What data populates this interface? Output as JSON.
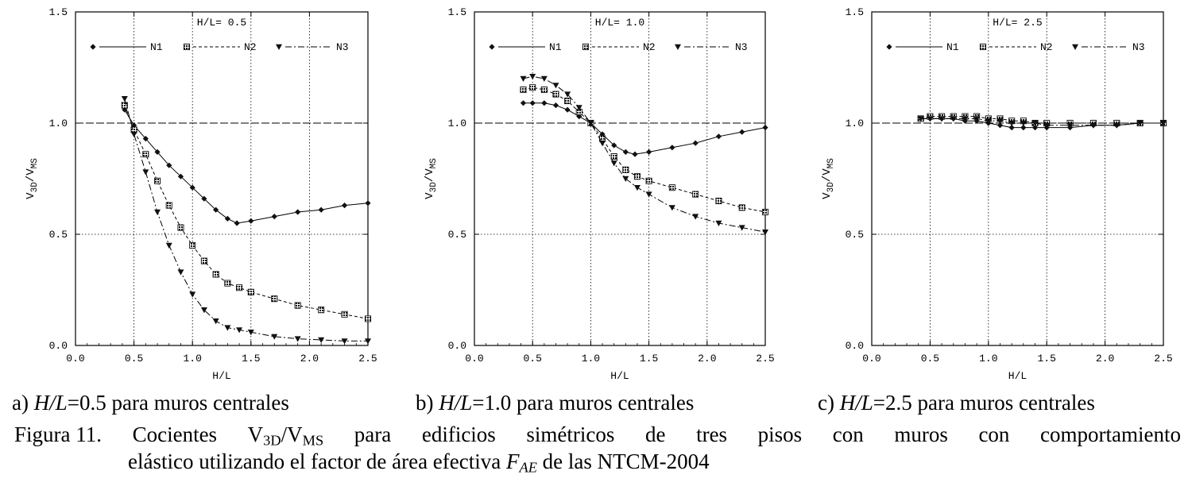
{
  "chart_data": [
    {
      "type": "line",
      "panel": "a",
      "title": "H/L= 0.5",
      "xlabel": "H/L",
      "ylabel": "V3D/VMS",
      "xlim": [
        0.0,
        2.5
      ],
      "ylim": [
        0.0,
        1.5
      ],
      "xticks": [
        "0.0",
        "0.5",
        "1.0",
        "1.5",
        "2.0",
        "2.5"
      ],
      "yticks": [
        "0.0",
        "0.5",
        "1.0",
        "1.5"
      ],
      "grid": true,
      "reference_line": 1.0,
      "legend_position": "top",
      "series": [
        {
          "name": "N1",
          "marker": "diamond",
          "line": "solid",
          "x": [
            0.42,
            0.5,
            0.6,
            0.7,
            0.8,
            0.9,
            1.0,
            1.1,
            1.2,
            1.3,
            1.38,
            1.5,
            1.7,
            1.9,
            2.1,
            2.3,
            2.5
          ],
          "y": [
            1.06,
            0.99,
            0.93,
            0.87,
            0.81,
            0.76,
            0.71,
            0.66,
            0.61,
            0.57,
            0.55,
            0.56,
            0.58,
            0.6,
            0.61,
            0.63,
            0.64
          ]
        },
        {
          "name": "N2",
          "marker": "square",
          "line": "dashed",
          "x": [
            0.42,
            0.5,
            0.6,
            0.7,
            0.8,
            0.9,
            1.0,
            1.1,
            1.2,
            1.3,
            1.4,
            1.5,
            1.7,
            1.9,
            2.1,
            2.3,
            2.5
          ],
          "y": [
            1.08,
            0.97,
            0.86,
            0.74,
            0.63,
            0.53,
            0.45,
            0.38,
            0.32,
            0.28,
            0.26,
            0.24,
            0.21,
            0.18,
            0.16,
            0.14,
            0.12
          ]
        },
        {
          "name": "N3",
          "marker": "triangle-down",
          "line": "dashdot",
          "x": [
            0.42,
            0.5,
            0.6,
            0.7,
            0.8,
            0.9,
            1.0,
            1.1,
            1.2,
            1.3,
            1.4,
            1.5,
            1.7,
            1.9,
            2.1,
            2.3,
            2.5
          ],
          "y": [
            1.11,
            0.95,
            0.78,
            0.6,
            0.45,
            0.33,
            0.23,
            0.16,
            0.11,
            0.08,
            0.07,
            0.06,
            0.04,
            0.03,
            0.025,
            0.02,
            0.02
          ]
        }
      ]
    },
    {
      "type": "line",
      "panel": "b",
      "title": "H/L= 1.0",
      "xlabel": "H/L",
      "ylabel": "V3D/VMS",
      "xlim": [
        0.0,
        2.5
      ],
      "ylim": [
        0.0,
        1.5
      ],
      "xticks": [
        "0.0",
        "0.5",
        "1.0",
        "1.5",
        "2.0",
        "2.5"
      ],
      "yticks": [
        "0.0",
        "0.5",
        "1.0",
        "1.5"
      ],
      "grid": true,
      "reference_line": 1.0,
      "legend_position": "top",
      "series": [
        {
          "name": "N1",
          "marker": "diamond",
          "line": "solid",
          "x": [
            0.42,
            0.5,
            0.6,
            0.7,
            0.8,
            0.9,
            1.0,
            1.1,
            1.2,
            1.3,
            1.38,
            1.5,
            1.7,
            1.9,
            2.1,
            2.3,
            2.5
          ],
          "y": [
            1.09,
            1.09,
            1.09,
            1.08,
            1.06,
            1.03,
            1.0,
            0.95,
            0.9,
            0.87,
            0.86,
            0.87,
            0.89,
            0.91,
            0.94,
            0.96,
            0.98
          ]
        },
        {
          "name": "N2",
          "marker": "square",
          "line": "dashed",
          "x": [
            0.42,
            0.5,
            0.6,
            0.7,
            0.8,
            0.9,
            1.0,
            1.1,
            1.2,
            1.3,
            1.4,
            1.5,
            1.7,
            1.9,
            2.1,
            2.3,
            2.5
          ],
          "y": [
            1.15,
            1.16,
            1.15,
            1.13,
            1.1,
            1.05,
            1.0,
            0.93,
            0.85,
            0.79,
            0.76,
            0.74,
            0.71,
            0.68,
            0.65,
            0.62,
            0.6
          ]
        },
        {
          "name": "N3",
          "marker": "triangle-down",
          "line": "dashdot",
          "x": [
            0.42,
            0.5,
            0.6,
            0.7,
            0.8,
            0.9,
            1.0,
            1.1,
            1.2,
            1.3,
            1.4,
            1.5,
            1.7,
            1.9,
            2.1,
            2.3,
            2.5
          ],
          "y": [
            1.2,
            1.21,
            1.2,
            1.17,
            1.13,
            1.07,
            1.0,
            0.91,
            0.82,
            0.75,
            0.71,
            0.68,
            0.62,
            0.58,
            0.55,
            0.53,
            0.51
          ]
        }
      ]
    },
    {
      "type": "line",
      "panel": "c",
      "title": "H/L= 2.5",
      "xlabel": "H/L",
      "ylabel": "V3D/VMS",
      "xlim": [
        0.0,
        2.5
      ],
      "ylim": [
        0.0,
        1.5
      ],
      "xticks": [
        "0.0",
        "0.5",
        "1.0",
        "1.5",
        "2.0",
        "2.5"
      ],
      "yticks": [
        "0.0",
        "0.5",
        "1.0",
        "1.5"
      ],
      "grid": true,
      "reference_line": 1.0,
      "legend_position": "top",
      "series": [
        {
          "name": "N1",
          "marker": "diamond",
          "line": "solid",
          "x": [
            0.42,
            0.5,
            0.6,
            0.7,
            0.8,
            0.9,
            1.0,
            1.1,
            1.2,
            1.3,
            1.4,
            1.5,
            1.7,
            1.9,
            2.1,
            2.3,
            2.5
          ],
          "y": [
            1.02,
            1.02,
            1.02,
            1.02,
            1.01,
            1.01,
            1.0,
            0.99,
            0.98,
            0.98,
            0.98,
            0.98,
            0.98,
            0.99,
            0.99,
            1.0,
            1.0
          ]
        },
        {
          "name": "N2",
          "marker": "square",
          "line": "dashed",
          "x": [
            0.42,
            0.5,
            0.6,
            0.7,
            0.8,
            0.9,
            1.0,
            1.1,
            1.2,
            1.3,
            1.4,
            1.5,
            1.7,
            1.9,
            2.1,
            2.3,
            2.5
          ],
          "y": [
            1.02,
            1.03,
            1.03,
            1.03,
            1.03,
            1.03,
            1.02,
            1.02,
            1.01,
            1.01,
            1.0,
            1.0,
            1.0,
            1.0,
            1.0,
            1.0,
            1.0
          ]
        },
        {
          "name": "N3",
          "marker": "triangle-down",
          "line": "dashdot",
          "x": [
            0.42,
            0.5,
            0.6,
            0.7,
            0.8,
            0.9,
            1.0,
            1.1,
            1.2,
            1.3,
            1.4,
            1.5,
            1.7,
            1.9,
            2.1,
            2.3,
            2.5
          ],
          "y": [
            1.02,
            1.02,
            1.02,
            1.02,
            1.02,
            1.02,
            1.01,
            1.01,
            1.0,
            1.0,
            1.0,
            0.99,
            0.99,
            0.99,
            0.99,
            1.0,
            1.0
          ]
        }
      ]
    }
  ],
  "subcaptions": {
    "a": {
      "prefix": "a) ",
      "var": "H/L",
      "rest": "=0.5 para muros centrales"
    },
    "b": {
      "prefix": "b) ",
      "var": "H/L",
      "rest": "=1.0 para muros centrales"
    },
    "c": {
      "prefix": "c) ",
      "var": "H/L",
      "rest": "=2.5 para muros centrales"
    }
  },
  "caption": {
    "label": "Figura 11.",
    "w1": "Cocientes",
    "v3d_base": "V",
    "v3d_sub": "3D",
    "slash": "/",
    "vms_base": "V",
    "vms_sub": "MS",
    "w2": "para",
    "w3": "edificios",
    "w4": "simétricos",
    "w5": "de",
    "w6": "tres",
    "w7": "pisos",
    "w8": "con",
    "w9": "muros",
    "w10": "con",
    "w11": "comportamiento",
    "line2_text": "elástico utilizando el factor de área efectiva ",
    "fae_base": "F",
    "fae_sub": "AE",
    "line2_end": " de las NTCM-2004"
  }
}
